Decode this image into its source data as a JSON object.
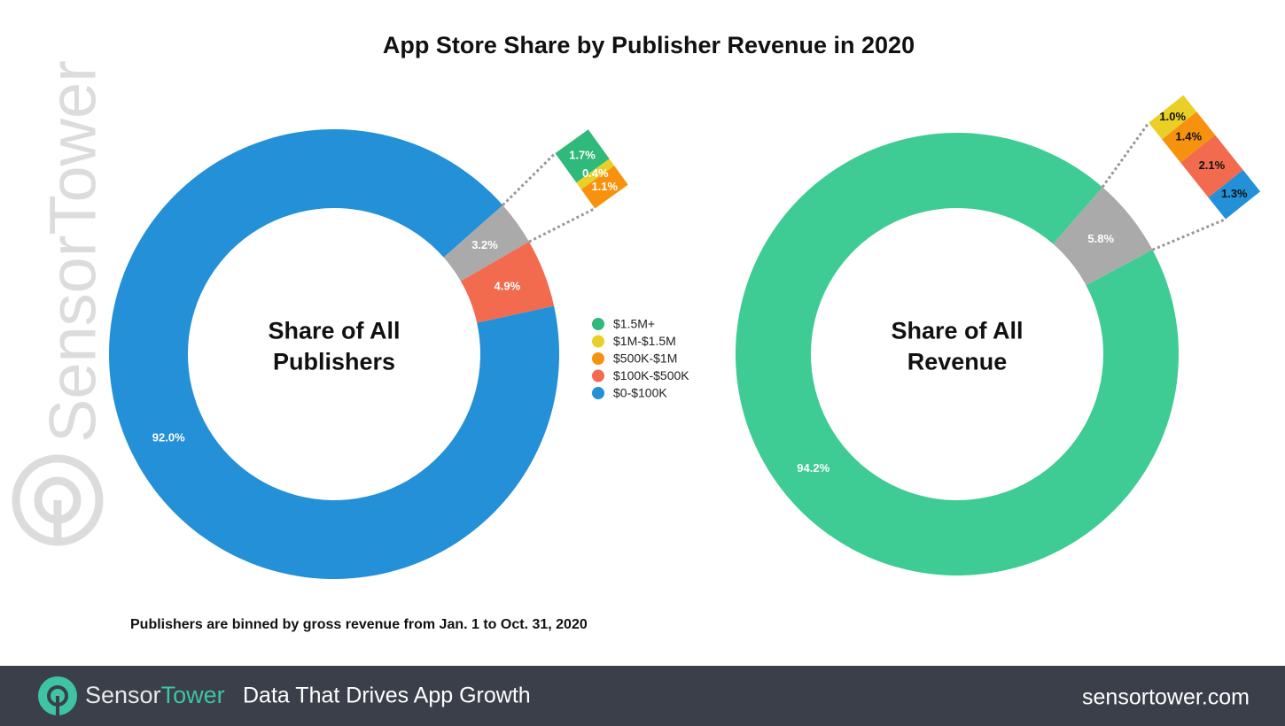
{
  "title": "App Store Share by Publisher Revenue in 2020",
  "legend": {
    "names": [
      "$1.5M+",
      "$1M-$1.5M",
      "$500K-$1M",
      "$100K-$500K",
      "$0-$100K"
    ],
    "colors": [
      "#2fb97a",
      "#e9cf26",
      "#f7920f",
      "#f26b4f",
      "#2390d8"
    ]
  },
  "chart_data": [
    {
      "type": "donut",
      "center_label": [
        "Share of All",
        "Publishers"
      ],
      "values": [
        3.2,
        4.9,
        92.0
      ],
      "value_labels": [
        "3.2%",
        "4.9%",
        "92.0%"
      ],
      "colors": [
        "#aaaaaa",
        "#f26b4f",
        "#2390d8"
      ],
      "detail": {
        "values": [
          1.7,
          0.4,
          1.1
        ],
        "value_labels": [
          "1.7%",
          "0.4%",
          "1.1%"
        ],
        "colors": [
          "#2fb97a",
          "#e9cf26",
          "#f7920f"
        ]
      }
    },
    {
      "type": "donut",
      "center_label": [
        "Share of All",
        "Revenue"
      ],
      "values": [
        5.8,
        94.2
      ],
      "value_labels": [
        "5.8%",
        "94.2%"
      ],
      "colors": [
        "#aaaaaa",
        "#3ecc94"
      ],
      "detail": {
        "values": [
          1.0,
          1.4,
          2.1,
          1.3
        ],
        "value_labels": [
          "1.0%",
          "1.4%",
          "2.1%",
          "1.3%"
        ],
        "colors": [
          "#e9cf26",
          "#f7920f",
          "#f26b4f",
          "#2390d8"
        ]
      }
    }
  ],
  "footnote": "Publishers are binned by gross revenue from Jan. 1 to Oct. 31, 2020",
  "watermark": "SensorTower",
  "footer": {
    "brand": [
      "Sensor",
      "Tower"
    ],
    "tagline": "Data That Drives App Growth",
    "url": "sensortower.com"
  }
}
